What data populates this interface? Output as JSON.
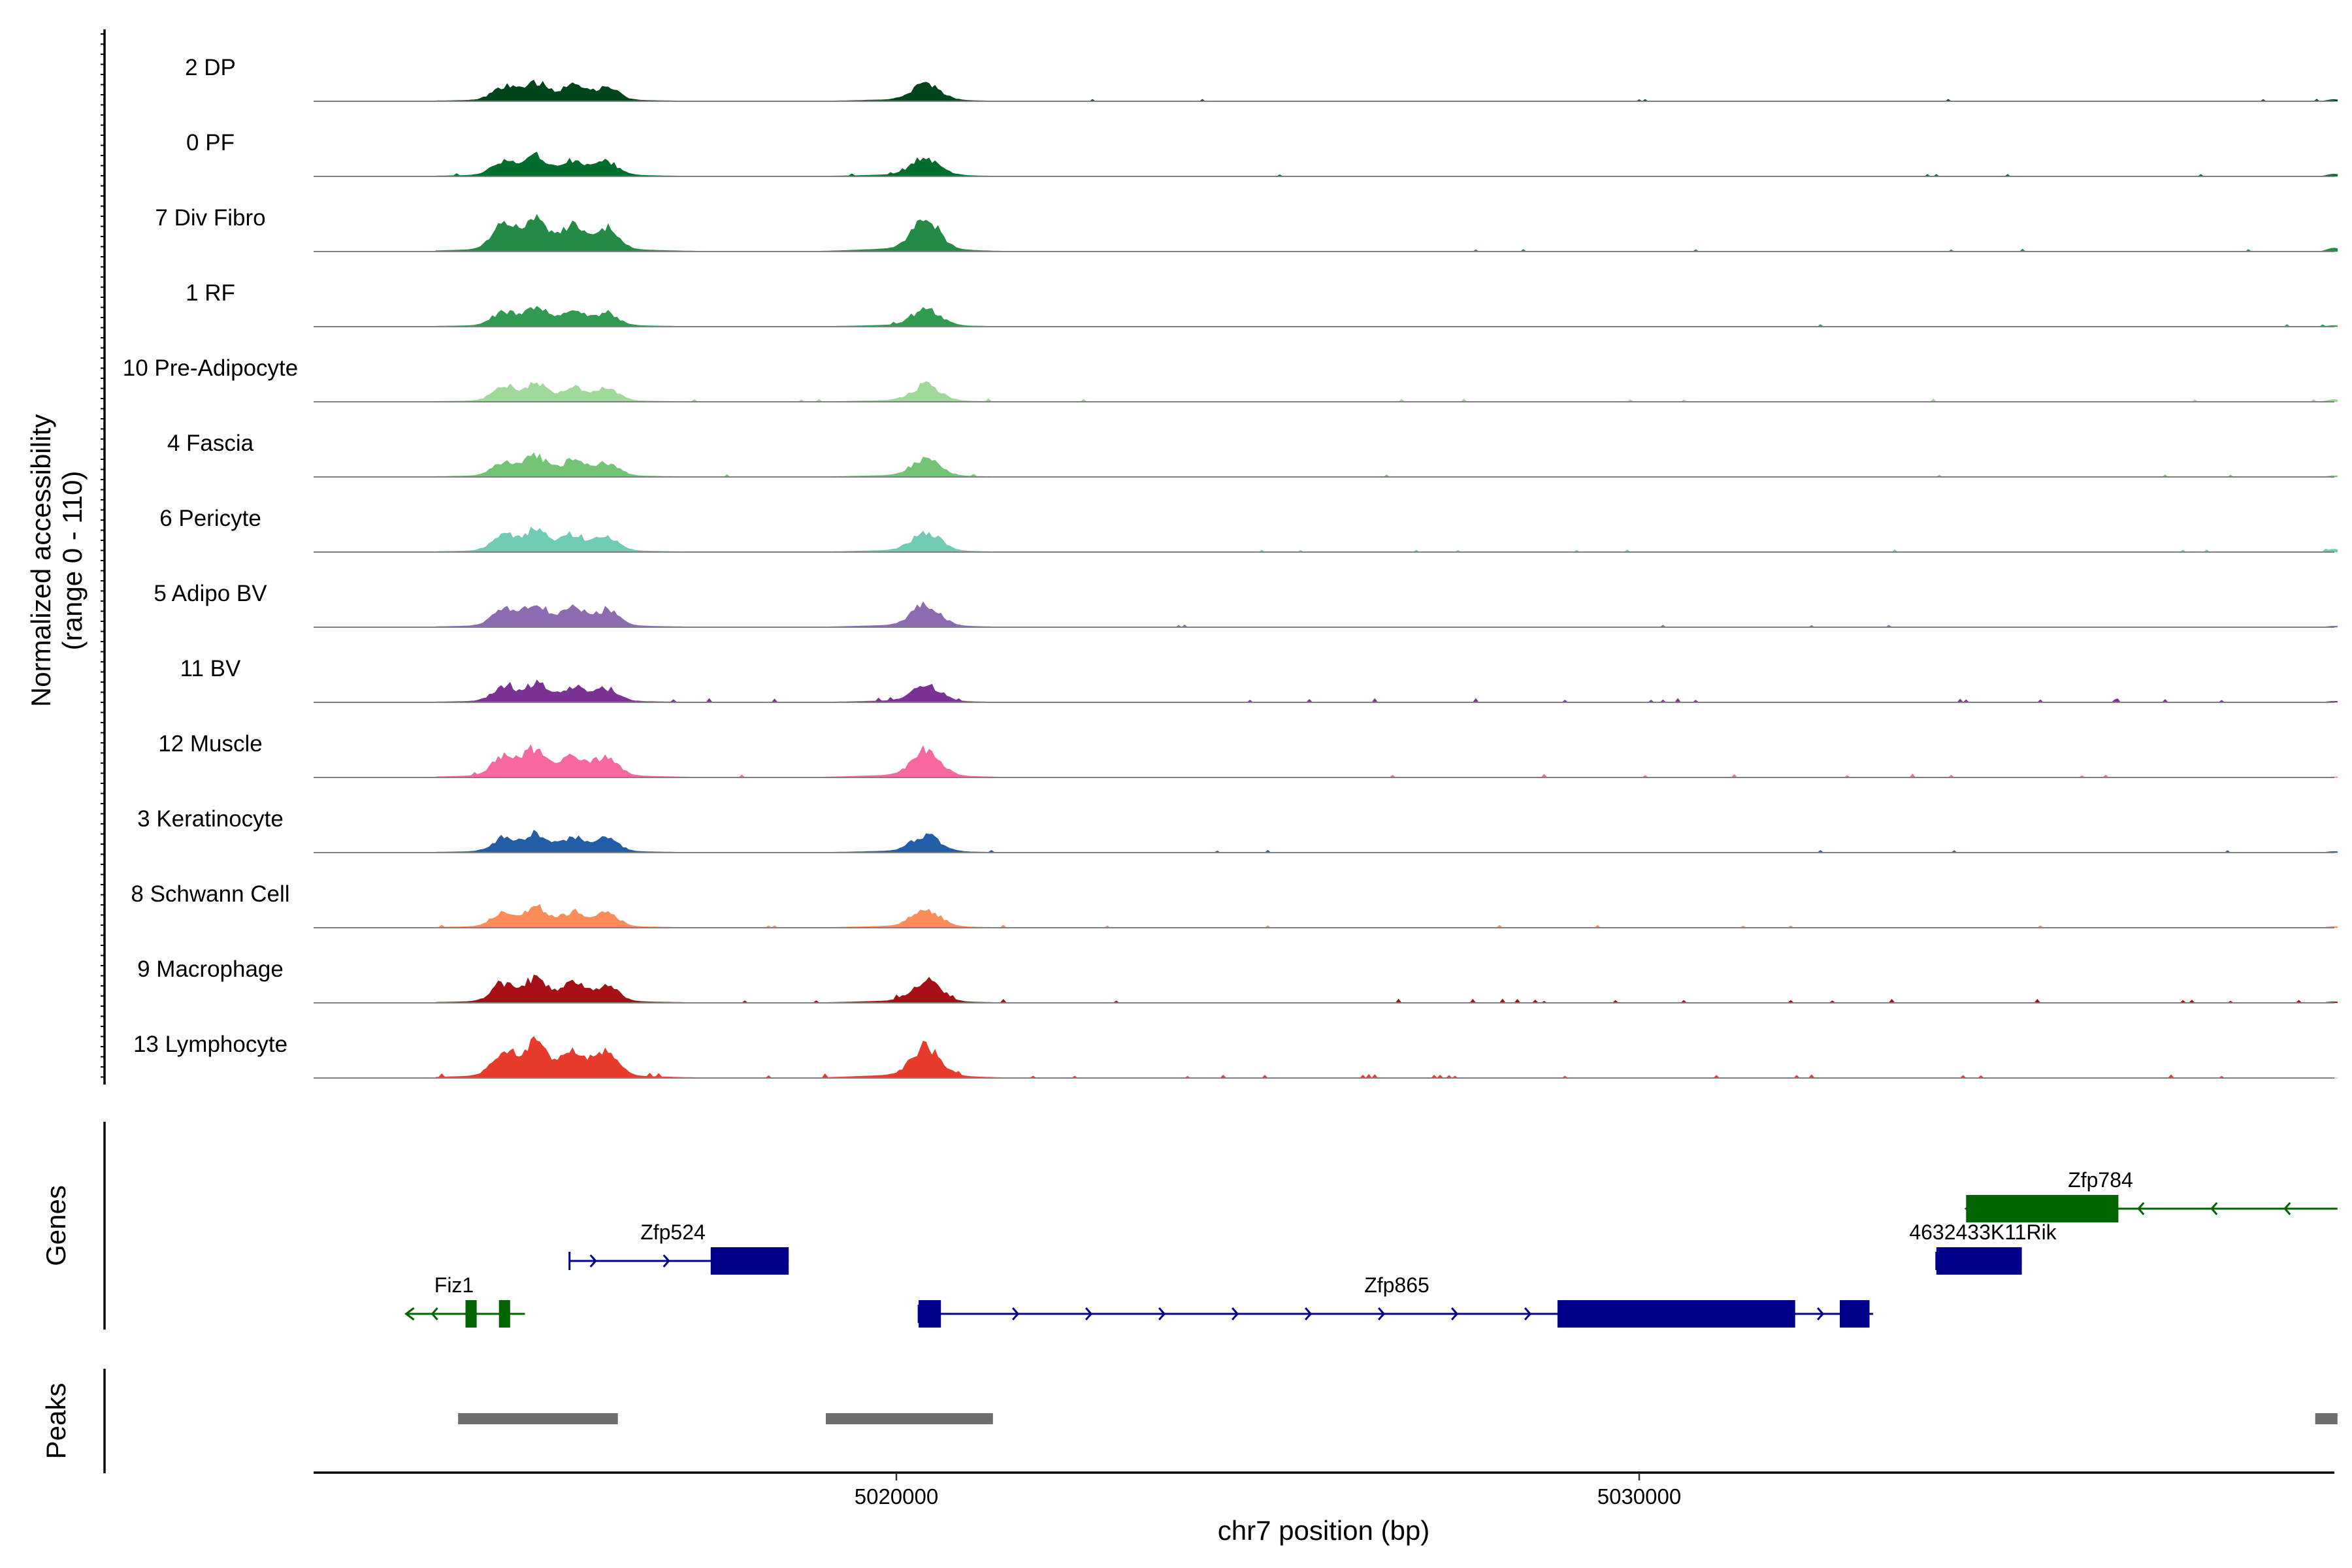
{
  "chart_data": {
    "type": "coverage",
    "chromosome": "chr7",
    "xlabel": "chr7 position (bp)",
    "ylabel": "Normalized accessibility",
    "ylabel_range": "(range 0 - 110)",
    "y_range": [
      0,
      110
    ],
    "xlim": [
      5012200,
      5039400
    ],
    "x_ticks": [
      5020000,
      5030000
    ],
    "x_tick_labels": [
      "5020000",
      "5030000"
    ],
    "shared_peak_heights": [
      {
        "position": 5014720,
        "value": 22
      },
      {
        "position": 5015150,
        "value": 28
      },
      {
        "position": 5015650,
        "value": 22
      },
      {
        "position": 5016100,
        "value": 20
      },
      {
        "position": 5020400,
        "value": 27
      }
    ],
    "tracks": [
      {
        "label": "2 DP",
        "color": "#00441b",
        "scale": 1.0,
        "noise": 0.1,
        "right_edge": 3
      },
      {
        "label": "0 PF",
        "color": "#006d2c",
        "scale": 1.05,
        "noise": 0.1,
        "right_edge": 4
      },
      {
        "label": "7 Div Fibro",
        "color": "#238b45",
        "scale": 1.75,
        "noise": 0.25,
        "right_edge": 6
      },
      {
        "label": "1 RF",
        "color": "#2f9a50",
        "scale": 1.0,
        "noise": 0.15,
        "right_edge": 2
      },
      {
        "label": "10 Pre-Adipocyte",
        "color": "#a1d99b",
        "scale": 0.95,
        "noise": 0.35,
        "right_edge": 4
      },
      {
        "label": "4 Fascia",
        "color": "#74c476",
        "scale": 1.05,
        "noise": 0.15,
        "right_edge": 2
      },
      {
        "label": "6 Pericyte",
        "color": "#6fcbb3",
        "scale": 1.15,
        "noise": 0.15,
        "right_edge": 5
      },
      {
        "label": "5 Adipo BV",
        "color": "#8c6bb1",
        "scale": 1.25,
        "noise": 0.2,
        "right_edge": 2
      },
      {
        "label": "11 BV",
        "color": "#7b3294",
        "scale": 1.0,
        "noise": 0.6,
        "right_edge": 2
      },
      {
        "label": "12 Muscle",
        "color": "#f768a1",
        "scale": 1.5,
        "noise": 0.5,
        "right_edge": 1
      },
      {
        "label": "3 Keratinocyte",
        "color": "#225ea8",
        "scale": 1.0,
        "noise": 0.3,
        "right_edge": 2
      },
      {
        "label": "8 Schwann Cell",
        "color": "#fc8d59",
        "scale": 1.05,
        "noise": 0.3,
        "right_edge": 2
      },
      {
        "label": "9 Macrophage",
        "color": "#a50f15",
        "scale": 1.25,
        "noise": 0.6,
        "right_edge": 2
      },
      {
        "label": "13 Lymphocyte",
        "color": "#e83b2c",
        "scale": 1.8,
        "noise": 0.6,
        "right_edge": 0
      }
    ],
    "genes_track_label": "Genes",
    "genes": [
      {
        "name": "Zfp784",
        "strand": "-",
        "color": "#006400",
        "start": 5034400,
        "end": 5039400,
        "exons": [
          [
            5034400,
            5036450
          ]
        ]
      },
      {
        "name": "4632433K11Rik",
        "strand": "+",
        "color": "#00008b",
        "start": 5034000,
        "end": 5035150,
        "exons": [
          [
            5034000,
            5035150
          ]
        ]
      },
      {
        "name": "Zfp524",
        "strand": "+",
        "color": "#00008b",
        "start": 5015600,
        "end": 5018550,
        "exons": [
          [
            5017500,
            5018550
          ]
        ]
      },
      {
        "name": "Fiz1",
        "strand": "-",
        "color": "#006400",
        "start": 5013400,
        "end": 5015000,
        "exons": [
          [
            5014200,
            5014350
          ],
          [
            5014650,
            5014800
          ]
        ]
      },
      {
        "name": "Zfp865",
        "strand": "+",
        "color": "#00008b",
        "start": 5020300,
        "end": 5033150,
        "exons": [
          [
            5020300,
            5020600
          ],
          [
            5028900,
            5032100
          ],
          [
            5032700,
            5033100
          ]
        ]
      }
    ],
    "peaks_track_label": "Peaks",
    "peaks": [
      [
        5014100,
        5016250
      ],
      [
        5019050,
        5021300
      ],
      [
        5039100,
        5039400
      ]
    ]
  }
}
